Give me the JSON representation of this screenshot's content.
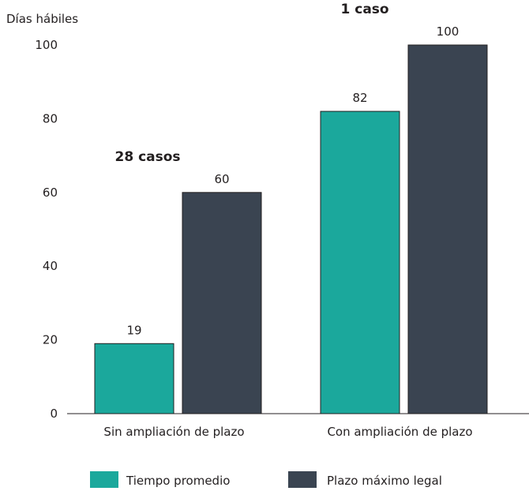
{
  "chart_data": {
    "type": "bar",
    "ylabel": "Días hábiles",
    "ylim": [
      0,
      100
    ],
    "yticks": [
      0,
      20,
      40,
      60,
      80,
      100
    ],
    "categories": [
      "Sin ampliación de plazo",
      "Con ampliación de plazo"
    ],
    "series": [
      {
        "name": "Tiempo promedio",
        "values": [
          19,
          82
        ],
        "color": "#1ba89c"
      },
      {
        "name": "Plazo máximo legal",
        "values": [
          60,
          100
        ],
        "color": "#3a4451"
      }
    ],
    "annotations": [
      "28 casos",
      "1 caso"
    ],
    "legend": "bottom",
    "grid": false
  }
}
